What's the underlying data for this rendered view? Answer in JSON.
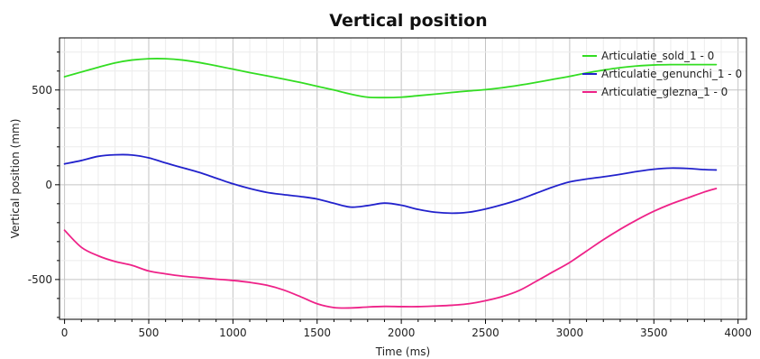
{
  "chart_data": {
    "type": "line",
    "title": "Vertical position",
    "xlabel": "Time (ms)",
    "ylabel": "Vertical position (mm)",
    "xlim": [
      -30,
      4050
    ],
    "ylim": [
      -710,
      775
    ],
    "xticks": [
      0,
      500,
      1000,
      1500,
      2000,
      2500,
      3000,
      3500,
      4000
    ],
    "yticks": [
      -500,
      0,
      500
    ],
    "grid": true,
    "legend_position": "top-right",
    "series": [
      {
        "name": "Articulatie_sold_1 - 0",
        "color": "#33dd22",
        "x": [
          0,
          100,
          200,
          300,
          400,
          500,
          600,
          700,
          800,
          900,
          1000,
          1100,
          1200,
          1300,
          1400,
          1500,
          1600,
          1700,
          1800,
          1900,
          2000,
          2100,
          2200,
          2300,
          2400,
          2500,
          2600,
          2700,
          2800,
          2900,
          3000,
          3100,
          3200,
          3300,
          3400,
          3500,
          3600,
          3700,
          3800,
          3870
        ],
        "y": [
          570,
          595,
          620,
          643,
          658,
          665,
          665,
          658,
          645,
          628,
          610,
          592,
          575,
          558,
          540,
          520,
          500,
          478,
          462,
          460,
          462,
          470,
          478,
          487,
          495,
          502,
          512,
          525,
          540,
          556,
          572,
          590,
          605,
          618,
          627,
          632,
          634,
          634,
          634,
          634
        ]
      },
      {
        "name": "Articulatie_genunchi_1 - 0",
        "color": "#2222cc",
        "x": [
          0,
          100,
          200,
          300,
          400,
          500,
          600,
          700,
          800,
          900,
          1000,
          1100,
          1200,
          1300,
          1400,
          1500,
          1600,
          1700,
          1800,
          1900,
          2000,
          2100,
          2200,
          2300,
          2400,
          2500,
          2600,
          2700,
          2800,
          2900,
          3000,
          3100,
          3200,
          3300,
          3400,
          3500,
          3600,
          3700,
          3800,
          3870
        ],
        "y": [
          110,
          128,
          150,
          158,
          157,
          142,
          115,
          90,
          65,
          35,
          5,
          -20,
          -40,
          -52,
          -62,
          -75,
          -98,
          -118,
          -110,
          -97,
          -108,
          -130,
          -145,
          -150,
          -145,
          -128,
          -105,
          -78,
          -45,
          -12,
          15,
          30,
          42,
          55,
          70,
          82,
          88,
          86,
          80,
          78
        ]
      },
      {
        "name": "Articulatie_glezna_1 - 0",
        "color": "#ee2288",
        "x": [
          0,
          100,
          200,
          300,
          400,
          500,
          600,
          700,
          800,
          900,
          1000,
          1100,
          1200,
          1300,
          1400,
          1500,
          1600,
          1700,
          1800,
          1900,
          2000,
          2100,
          2200,
          2300,
          2400,
          2500,
          2600,
          2700,
          2800,
          2900,
          3000,
          3100,
          3200,
          3300,
          3400,
          3500,
          3600,
          3700,
          3800,
          3870
        ],
        "y": [
          -240,
          -330,
          -375,
          -405,
          -425,
          -455,
          -470,
          -482,
          -490,
          -498,
          -505,
          -515,
          -530,
          -555,
          -590,
          -628,
          -648,
          -650,
          -645,
          -642,
          -643,
          -643,
          -640,
          -636,
          -628,
          -612,
          -590,
          -558,
          -510,
          -460,
          -410,
          -350,
          -290,
          -235,
          -185,
          -140,
          -102,
          -70,
          -38,
          -20
        ]
      }
    ]
  }
}
